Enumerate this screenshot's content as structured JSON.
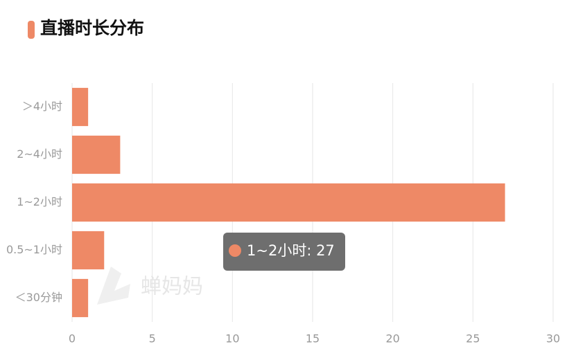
{
  "chart_data": {
    "type": "bar",
    "orientation": "horizontal",
    "title": "直播时长分布",
    "categories": [
      "＞4小时",
      "2~4小时",
      "1~2小时",
      "0.5~1小时",
      "＜30分钟"
    ],
    "values": [
      1,
      3,
      27,
      2,
      1
    ],
    "color": "#ee8966",
    "xlim": [
      0,
      30
    ],
    "xticks": [
      0,
      5,
      10,
      15,
      20,
      25,
      30
    ],
    "grid": true,
    "tooltip": "1~2小时: 27",
    "watermark": "蝉妈妈"
  }
}
